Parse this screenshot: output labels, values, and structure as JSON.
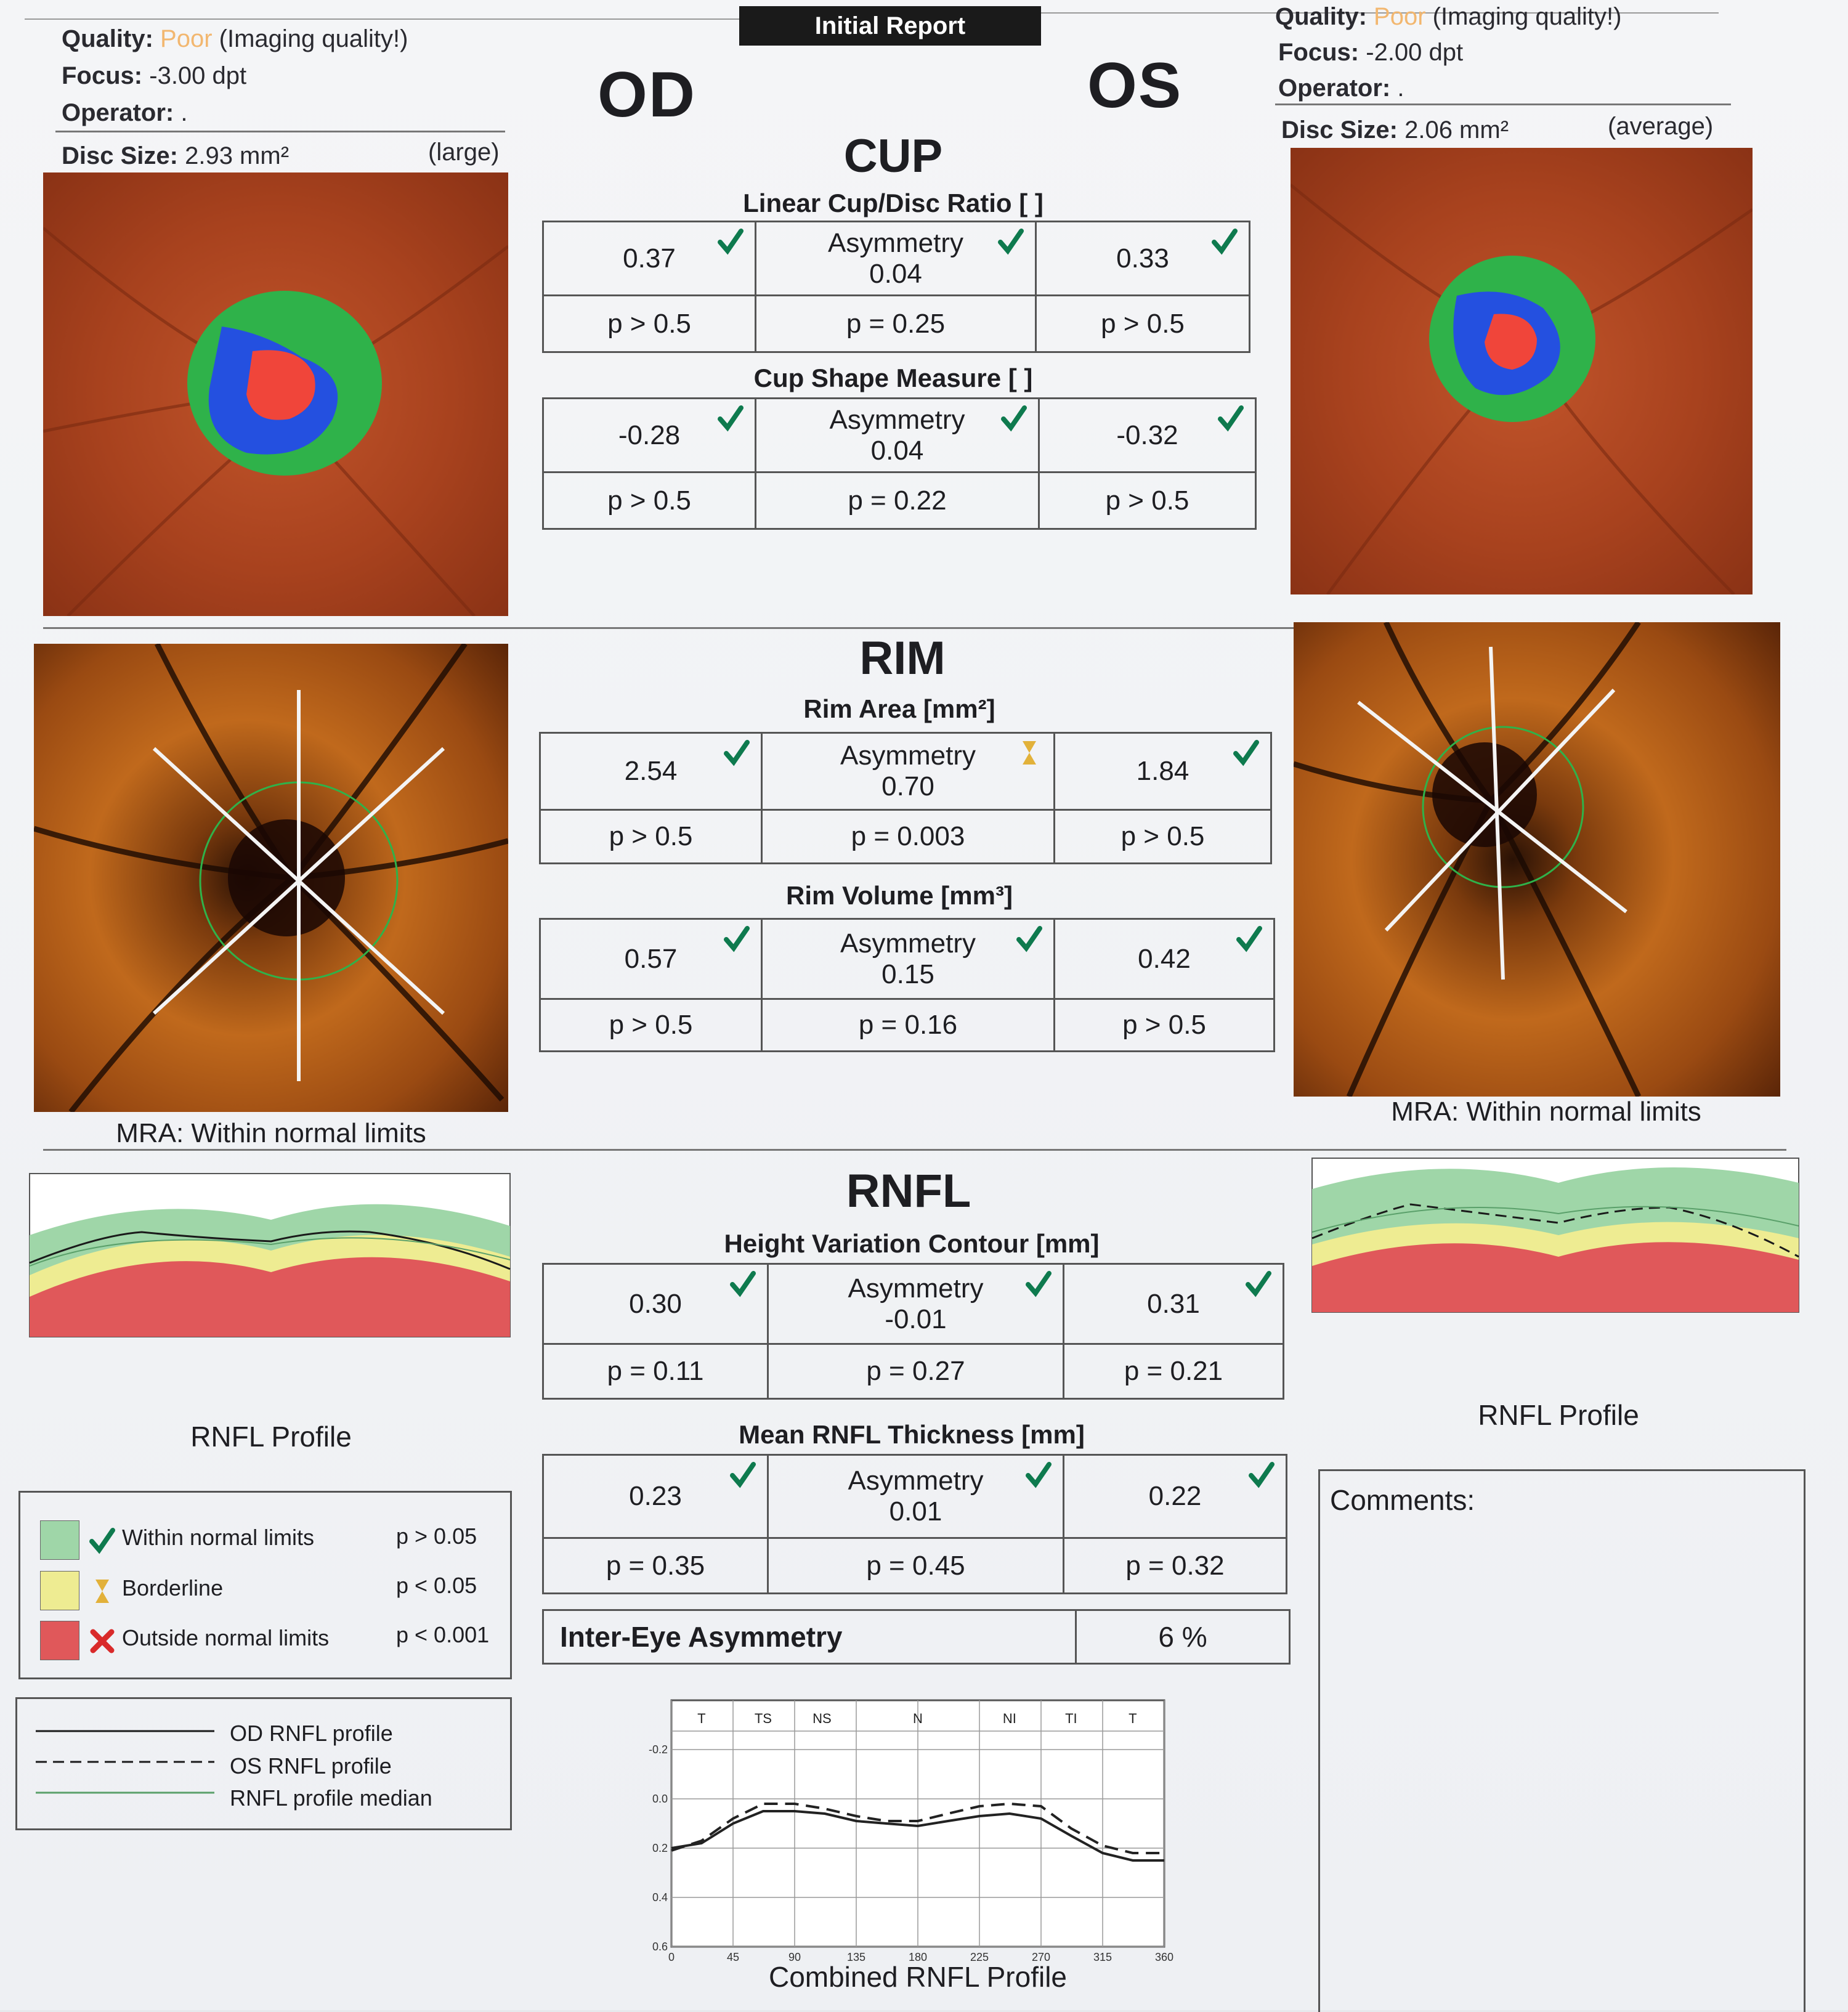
{
  "header": {
    "banner": "Initial Report",
    "od": {
      "quality_label": "Quality:",
      "quality_value": "Poor",
      "quality_note": "(Imaging quality!)",
      "focus_label": "Focus:",
      "focus_value": "-3.00 dpt",
      "operator_label": "Operator:",
      "operator_value": ".",
      "disc_label": "Disc Size:",
      "disc_value": "2.93 mm²",
      "disc_class": "(large)"
    },
    "os": {
      "quality_label": "Quality:",
      "quality_value": "Poor",
      "quality_note": "(Imaging quality!)",
      "focus_label": "Focus:",
      "focus_value": "-2.00 dpt",
      "operator_label": "Operator:",
      "operator_value": ".",
      "disc_label": "Disc Size:",
      "disc_value": "2.06 mm²",
      "disc_class": "(average)"
    }
  },
  "eyes": {
    "od": "OD",
    "os": "OS"
  },
  "cup": {
    "title": "CUP",
    "linear": {
      "title": "Linear Cup/Disc Ratio [ ]",
      "od": "0.37",
      "asym_label": "Asymmetry",
      "asym": "0.04",
      "os": "0.33",
      "od_p": "p > 0.5",
      "asym_p": "p = 0.25",
      "os_p": "p > 0.5"
    },
    "shape": {
      "title": "Cup Shape Measure [ ]",
      "od": "-0.28",
      "asym_label": "Asymmetry",
      "asym": "0.04",
      "os": "-0.32",
      "od_p": "p > 0.5",
      "asym_p": "p = 0.22",
      "os_p": "p > 0.5"
    }
  },
  "rim": {
    "title": "RIM",
    "area": {
      "title": "Rim Area [mm²]",
      "od": "2.54",
      "asym_label": "Asymmetry",
      "asym": "0.70",
      "os": "1.84",
      "od_p": "p > 0.5",
      "asym_p": "p = 0.003",
      "os_p": "p > 0.5"
    },
    "volume": {
      "title": "Rim Volume [mm³]",
      "od": "0.57",
      "asym_label": "Asymmetry",
      "asym": "0.15",
      "os": "0.42",
      "od_p": "p > 0.5",
      "asym_p": "p = 0.16",
      "os_p": "p > 0.5"
    },
    "mra_od": "MRA: Within normal limits",
    "mra_os": "MRA: Within normal limits"
  },
  "rnfl": {
    "title": "RNFL",
    "hvc": {
      "title": "Height Variation Contour [mm]",
      "od": "0.30",
      "asym_label": "Asymmetry",
      "asym": "-0.01",
      "os": "0.31",
      "od_p": "p = 0.11",
      "asym_p": "p = 0.27",
      "os_p": "p = 0.21"
    },
    "mean": {
      "title": "Mean RNFL Thickness [mm]",
      "od": "0.23",
      "asym_label": "Asymmetry",
      "asym": "0.01",
      "os": "0.22",
      "od_p": "p = 0.35",
      "asym_p": "p = 0.45",
      "os_p": "p = 0.32"
    },
    "inter_eye_label": "Inter-Eye Asymmetry",
    "inter_eye_value": "6 %",
    "profile_caption_od": "RNFL Profile",
    "profile_caption_os": "RNFL Profile",
    "combined_caption": "Combined RNFL Profile",
    "sector_labels": [
      "T",
      "TS",
      "NS",
      "N",
      "NI",
      "TI",
      "T"
    ],
    "x_ticks": [
      "0",
      "45",
      "90",
      "135",
      "180",
      "225",
      "270",
      "315",
      "360"
    ],
    "y_ticks": [
      "-0.2",
      "0.0",
      "0.2",
      "0.4",
      "0.6"
    ]
  },
  "legend": {
    "rows": [
      {
        "label": "Within normal limits",
        "p": "p > 0.05",
        "color": "#9fd6a8",
        "icon": "check-icon"
      },
      {
        "label": "Borderline",
        "p": "p < 0.05",
        "color": "#eeec92",
        "icon": "hourglass-icon"
      },
      {
        "label": "Outside normal limits",
        "p": "p < 0.001",
        "color": "#e0585a",
        "icon": "cross-icon"
      }
    ],
    "lines": [
      "OD RNFL profile",
      "OS RNFL profile",
      "RNFL profile median"
    ]
  },
  "comments": {
    "label": "Comments:"
  },
  "colors": {
    "check": "#0e7a4e",
    "borderline": "#e2b13a",
    "cup_red": "#f0453a",
    "rim_green": "#2fb24a",
    "rim_blue": "#2450e0"
  },
  "chart_data": {
    "type": "line",
    "title": "Combined RNFL Profile",
    "x": [
      0,
      22,
      45,
      67,
      90,
      112,
      135,
      157,
      180,
      202,
      225,
      247,
      270,
      292,
      315,
      337,
      360
    ],
    "series": [
      {
        "name": "OD RNFL profile",
        "values": [
          0.2,
          0.18,
          0.1,
          0.05,
          0.05,
          0.06,
          0.09,
          0.1,
          0.11,
          0.09,
          0.07,
          0.06,
          0.08,
          0.15,
          0.22,
          0.25,
          0.25
        ]
      },
      {
        "name": "OS RNFL profile",
        "values": [
          0.21,
          0.17,
          0.08,
          0.02,
          0.02,
          0.04,
          0.07,
          0.09,
          0.09,
          0.06,
          0.03,
          0.02,
          0.03,
          0.12,
          0.19,
          0.22,
          0.22
        ]
      }
    ],
    "xlim": [
      0,
      360
    ],
    "ylim": [
      -0.2,
      0.6
    ],
    "grid": true
  }
}
